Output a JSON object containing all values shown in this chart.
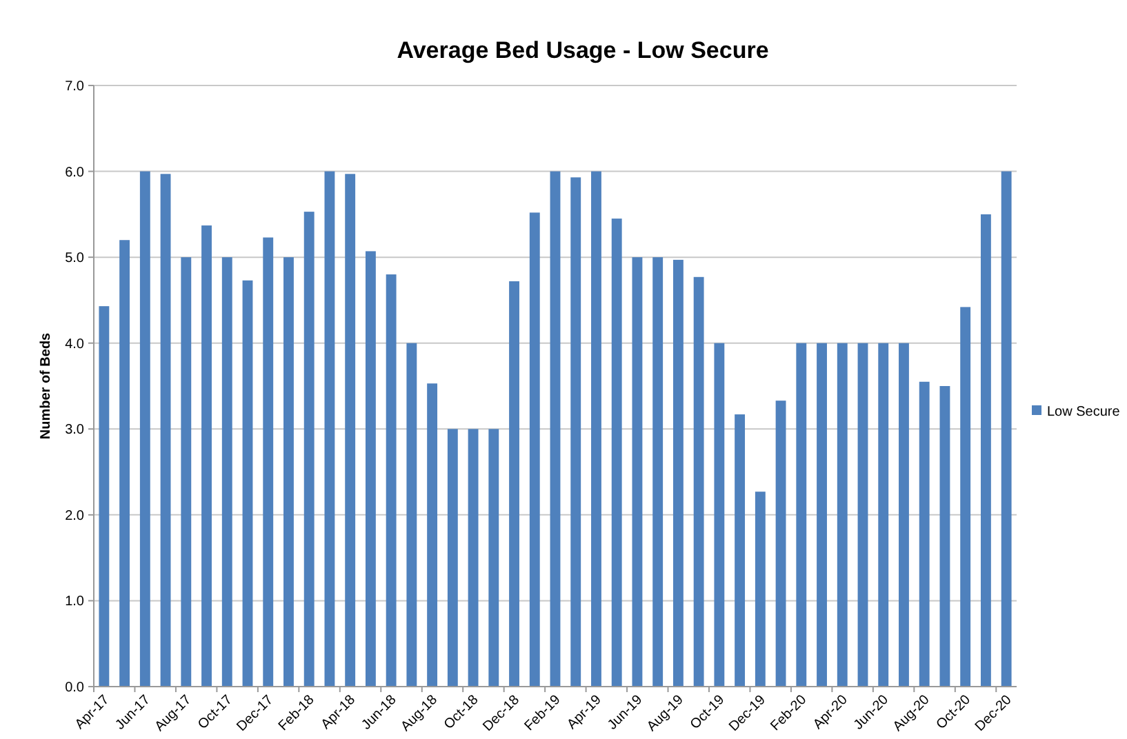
{
  "chart_data": {
    "type": "bar",
    "title": "Average Bed Usage - Low Secure",
    "ylabel": "Number of Beds",
    "categories": [
      "Apr-17",
      null,
      "Jun-17",
      null,
      "Aug-17",
      null,
      "Oct-17",
      null,
      "Dec-17",
      null,
      "Feb-18",
      null,
      "Apr-18",
      null,
      "Jun-18",
      null,
      "Aug-18",
      null,
      "Oct-18",
      null,
      "Dec-18",
      null,
      "Feb-19",
      null,
      "Apr-19",
      null,
      "Jun-19",
      null,
      "Aug-19",
      null,
      "Oct-19",
      null,
      "Dec-19",
      null,
      "Feb-20",
      null,
      "Apr-20",
      null,
      "Jun-20",
      null,
      "Aug-20",
      null,
      "Oct-20",
      null,
      "Dec-20"
    ],
    "series": [
      {
        "name": "Low Secure",
        "color": "#4f81bd",
        "values": [
          4.43,
          5.2,
          6.0,
          5.97,
          5.0,
          5.37,
          5.0,
          4.73,
          5.23,
          5.0,
          5.53,
          6.0,
          5.97,
          5.07,
          4.8,
          4.0,
          3.53,
          3.0,
          3.0,
          3.0,
          4.72,
          5.52,
          6.0,
          5.93,
          6.0,
          5.45,
          5.0,
          5.0,
          4.97,
          4.77,
          4.0,
          3.17,
          2.27,
          3.33,
          4.0,
          4.0,
          4.0,
          4.0,
          4.0,
          4.0,
          3.55,
          3.5,
          4.42,
          5.5,
          6.0
        ]
      }
    ],
    "ylim": [
      0,
      7
    ],
    "yticks": [
      {
        "value": 0,
        "label": "0.0"
      },
      {
        "value": 1,
        "label": "1.0"
      },
      {
        "value": 2,
        "label": "2.0"
      },
      {
        "value": 3,
        "label": "3.0"
      },
      {
        "value": 4,
        "label": "4.0"
      },
      {
        "value": 5,
        "label": "5.0"
      },
      {
        "value": 6,
        "label": "6.0"
      },
      {
        "value": 7,
        "label": "7.0"
      }
    ],
    "grid": "y",
    "legend": "right"
  }
}
